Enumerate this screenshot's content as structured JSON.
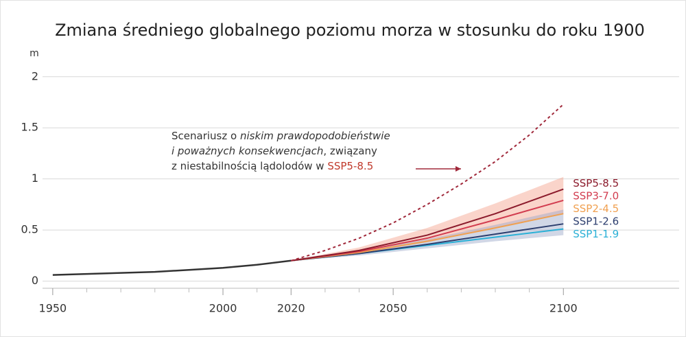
{
  "chart_data": {
    "type": "line",
    "title": "Zmiana średniego globalnego poziomu morza w stosunku do roku 1900",
    "y_unit": "m",
    "xlim": [
      1947,
      2134
    ],
    "ylim": [
      -0.07,
      2.2
    ],
    "xticks": [
      1950,
      2000,
      2020,
      2050,
      2100
    ],
    "xminorticks": [
      1960,
      1970,
      1980,
      1990,
      2010,
      2030,
      2040,
      2060,
      2070,
      2080,
      2090
    ],
    "yticks": [
      0,
      0.5,
      1,
      1.5,
      2
    ],
    "grid": true,
    "historical": {
      "color": "#333333",
      "x": [
        1950,
        1960,
        1970,
        1980,
        1990,
        2000,
        2010,
        2020
      ],
      "values": [
        0.06,
        0.07,
        0.08,
        0.09,
        0.11,
        0.13,
        0.16,
        0.2
      ]
    },
    "low_likelihood": {
      "color": "#a0283a",
      "x": [
        2020,
        2030,
        2040,
        2050,
        2060,
        2070,
        2080,
        2090,
        2100
      ],
      "values": [
        0.2,
        0.3,
        0.42,
        0.57,
        0.75,
        0.95,
        1.17,
        1.43,
        1.73
      ]
    },
    "bands": [
      {
        "color": "#f4a08a",
        "x": [
          2020,
          2040,
          2060,
          2080,
          2100
        ],
        "low": [
          0.2,
          0.27,
          0.38,
          0.52,
          0.66
        ],
        "high": [
          0.2,
          0.33,
          0.52,
          0.76,
          1.02
        ]
      },
      {
        "color": "#9aa6c8",
        "x": [
          2020,
          2040,
          2060,
          2080,
          2100
        ],
        "low": [
          0.2,
          0.25,
          0.32,
          0.39,
          0.45
        ],
        "high": [
          0.2,
          0.29,
          0.41,
          0.55,
          0.7
        ]
      }
    ],
    "x": [
      2020,
      2040,
      2060,
      2080,
      2100
    ],
    "series": [
      {
        "name": "SSP5-8.5",
        "color": "#8b1a2b",
        "values": [
          0.2,
          0.3,
          0.45,
          0.66,
          0.9
        ]
      },
      {
        "name": "SSP3-7.0",
        "color": "#d23c4f",
        "values": [
          0.2,
          0.29,
          0.42,
          0.6,
          0.79
        ]
      },
      {
        "name": "SSP2-4.5",
        "color": "#f0a050",
        "values": [
          0.2,
          0.28,
          0.39,
          0.52,
          0.66
        ]
      },
      {
        "name": "SSP1-2.6",
        "color": "#2c3e6e",
        "values": [
          0.2,
          0.27,
          0.36,
          0.46,
          0.56
        ]
      },
      {
        "name": "SSP1-1.9",
        "color": "#2ab0d6",
        "values": [
          0.2,
          0.27,
          0.35,
          0.43,
          0.51
        ]
      }
    ],
    "annotation": [
      [
        {
          "text": "Scenariusz o "
        },
        {
          "text": "niskim prawdopodobieństwie",
          "italic": true
        }
      ],
      [
        {
          "text": "i poważnych konsekwencjach",
          "italic": true
        },
        {
          "text": ", związany"
        }
      ],
      [
        {
          "text": "z niestabilnością lądolodów w "
        },
        {
          "text": "SSP5-8.5",
          "color": "#c0392b"
        }
      ]
    ]
  }
}
